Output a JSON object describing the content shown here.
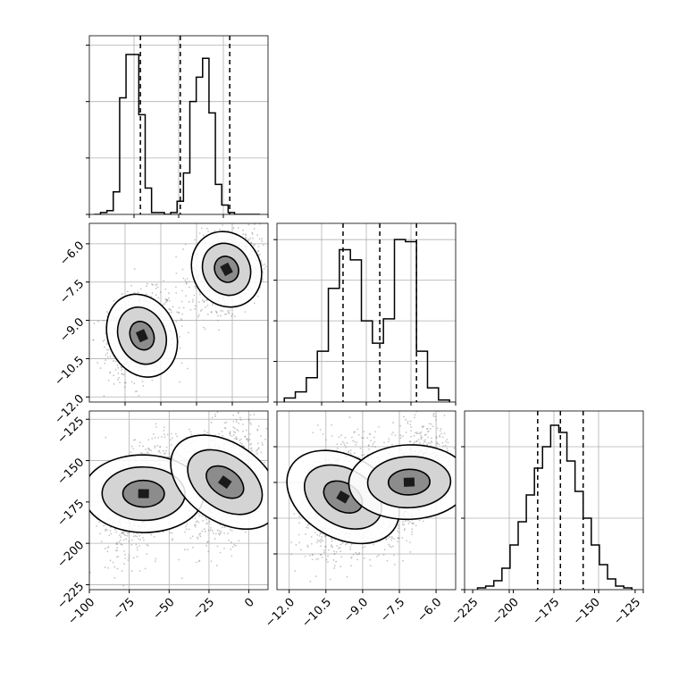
{
  "chart_data": {
    "type": "corner",
    "grid": true,
    "colors": {
      "line": "#000000",
      "grid": "#b0b0b0",
      "scatter": "#7f7f7f"
    },
    "panels": [
      {
        "id": "hist-x",
        "type": "histogram",
        "row": 0,
        "col": 0,
        "xlim": [
          -100,
          12
        ],
        "bins": [
          -97,
          -93,
          -89,
          -85,
          -81,
          -77,
          -73,
          -69,
          -65,
          -61,
          -57,
          -53,
          -49,
          -45,
          -41,
          -37,
          -33,
          -29,
          -25,
          -21,
          -17,
          -13,
          -9,
          -5,
          -1,
          3,
          7
        ],
        "counts": [
          0,
          1,
          2,
          12,
          62,
          85,
          85,
          53,
          14,
          1,
          1,
          0,
          1,
          7,
          22,
          60,
          73,
          83,
          54,
          16,
          5,
          1,
          0,
          0,
          0,
          0
        ],
        "ymax": 95,
        "quantiles": [
          -68,
          -43,
          -12
        ],
        "y_ticks": [
          0,
          30,
          60,
          90
        ]
      },
      {
        "id": "hist-y",
        "type": "histogram",
        "row": 1,
        "col": 1,
        "xlim": [
          -12.5,
          -5.2
        ],
        "bins": [
          -12.2,
          -11.75,
          -11.3,
          -10.85,
          -10.4,
          -9.95,
          -9.5,
          -9.05,
          -8.6,
          -8.15,
          -7.7,
          -7.25,
          -6.8,
          -6.35,
          -5.9,
          -5.45
        ],
        "counts": [
          2,
          5,
          12,
          25,
          56,
          75,
          70,
          40,
          29,
          41,
          80,
          79,
          25,
          7,
          1
        ],
        "ymax": 88,
        "quantiles": [
          -9.8,
          -8.3,
          -6.8
        ],
        "y_ticks": [
          0,
          20,
          40,
          60,
          80
        ]
      },
      {
        "id": "hist-z",
        "type": "histogram",
        "row": 2,
        "col": 2,
        "xlim": [
          -230,
          -120
        ],
        "bins": [
          -222,
          -217,
          -212,
          -207,
          -202,
          -197,
          -192,
          -187,
          -182,
          -177,
          -172,
          -167,
          -162,
          -157,
          -152,
          -147,
          -142,
          -137,
          -132,
          -127
        ],
        "counts": [
          1,
          2,
          5,
          12,
          25,
          38,
          53,
          68,
          80,
          92,
          88,
          72,
          55,
          40,
          25,
          14,
          6,
          2,
          1
        ],
        "ymax": 100,
        "quantiles": [
          -185,
          -171,
          -157
        ],
        "y_ticks": [
          0,
          40,
          80
        ]
      },
      {
        "id": "contour-xy",
        "type": "contour",
        "row": 1,
        "col": 0,
        "xlim": [
          -100,
          12
        ],
        "ylim": [
          -12.2,
          -5.2
        ],
        "modes": [
          {
            "cx": -67,
            "cy": -9.6,
            "sx": 7,
            "sy": 0.55,
            "rho": 0.15,
            "n": 900
          },
          {
            "cx": -14,
            "cy": -7.0,
            "sx": 7,
            "sy": 0.5,
            "rho": 0.2,
            "n": 900
          }
        ],
        "levels": [
          1.6,
          1.1,
          0.55
        ],
        "y_ticks": [
          -12.0,
          -10.5,
          -9.0,
          -7.5,
          -6.0
        ],
        "y_tick_labels": [
          "−12.0",
          "−10.5",
          "−9.0",
          "−7.5",
          "−6.0"
        ]
      },
      {
        "id": "contour-xz",
        "type": "contour",
        "row": 2,
        "col": 0,
        "xlim": [
          -100,
          12
        ],
        "ylim": [
          -228,
          -120
        ],
        "modes": [
          {
            "cx": -66,
            "cy": -170,
            "sx": 8,
            "sy": 12,
            "rho": 0.55,
            "n": 900
          },
          {
            "cx": -15,
            "cy": -163,
            "sx": 8,
            "sy": 12,
            "rho": 0.3,
            "n": 900
          }
        ],
        "levels": [
          1.6,
          1.1,
          0.55
        ],
        "x_ticks": [
          -100,
          -75,
          -50,
          -25,
          0
        ],
        "x_tick_labels": [
          "−100",
          "−75",
          "−50",
          "−25",
          "0"
        ],
        "y_ticks": [
          -225,
          -200,
          -175,
          -150,
          -125
        ],
        "y_tick_labels": [
          "−225",
          "−200",
          "−175",
          "−150",
          "−125"
        ]
      },
      {
        "id": "contour-yz",
        "type": "contour",
        "row": 2,
        "col": 1,
        "xlim": [
          -12.5,
          -5.2
        ],
        "ylim": [
          -228,
          -120
        ],
        "modes": [
          {
            "cx": -9.8,
            "cy": -172,
            "sx": 0.55,
            "sy": 12,
            "rho": 0.35,
            "n": 900
          },
          {
            "cx": -7.1,
            "cy": -163,
            "sx": 0.5,
            "sy": 12,
            "rho": 0.55,
            "n": 900
          }
        ],
        "levels": [
          1.6,
          1.1,
          0.55
        ],
        "x_ticks": [
          -12.0,
          -10.5,
          -9.0,
          -7.5,
          -6.0
        ],
        "x_tick_labels": [
          "−12.0",
          "−10.5",
          "−9.0",
          "−7.5",
          "−6.0"
        ]
      }
    ],
    "bottom_axis_hist_z": {
      "x_ticks": [
        -225,
        -200,
        -175,
        -150,
        -125
      ],
      "x_tick_labels": [
        "−225",
        "−200",
        "−175",
        "−150",
        "−125"
      ]
    }
  }
}
